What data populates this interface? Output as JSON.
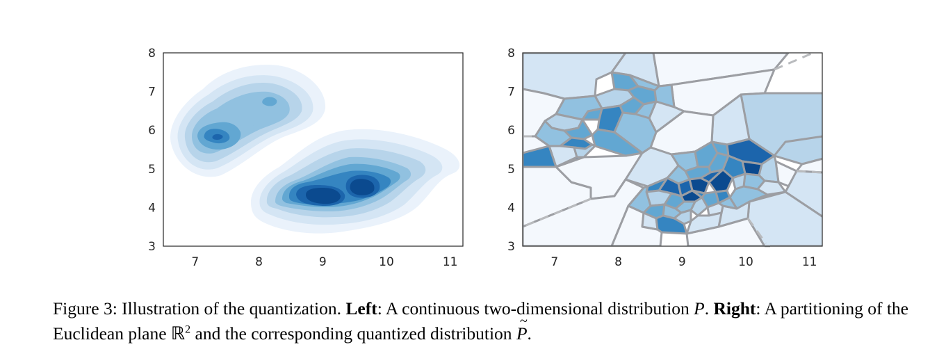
{
  "panels": [
    {
      "id": "left",
      "xticks": [
        "7",
        "8",
        "9",
        "10",
        "11"
      ],
      "yticks": [
        "3",
        "4",
        "5",
        "6",
        "7",
        "8"
      ],
      "xlim": [
        6.5,
        11.2
      ],
      "ylim": [
        3,
        8
      ]
    },
    {
      "id": "right",
      "xticks": [
        "7",
        "8",
        "9",
        "10",
        "11"
      ],
      "yticks": [
        "3",
        "4",
        "5",
        "6",
        "7",
        "8"
      ],
      "xlim": [
        6.5,
        11.2
      ],
      "ylim": [
        3,
        8
      ]
    }
  ],
  "colors": {
    "c1": "#eaf2fb",
    "c2": "#d4e5f4",
    "c3": "#b7d4ea",
    "c4": "#91c1e0",
    "c5": "#62a7d2",
    "c6": "#3585c1",
    "c7": "#1c65ac",
    "c8": "#0b4a8f",
    "edge": "#9c9ea3"
  },
  "caption": {
    "figure_label": "Figure 3:",
    "intro": "Illustration of the quantization.",
    "left_label": "Left",
    "left_text": ": A continuous two-dimensional distribution",
    "symbol_P": "P",
    "right_label": "Right",
    "right_text": ": A partitioning of the Euclidean plane",
    "symbol_R": "ℝ",
    "superscript": "2",
    "tail_text": "and the corresponding quantized distribution",
    "symbol_Ptilde": "P",
    "tilde": "~"
  }
}
